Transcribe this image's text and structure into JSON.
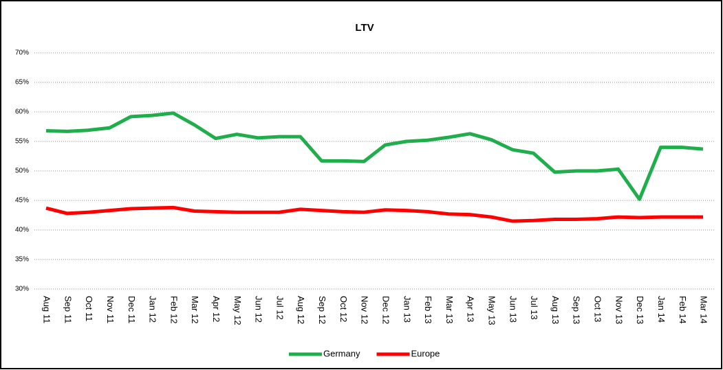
{
  "chart_data": {
    "type": "line",
    "title": "LTV",
    "categories": [
      "Aug 11",
      "Sep 11",
      "Oct 11",
      "Nov 11",
      "Dec 11",
      "Jan 12",
      "Feb 12",
      "Mar 12",
      "Apr 12",
      "May 12",
      "Jun 12",
      "Jul 12",
      "Aug 12",
      "Sep 12",
      "Oct 12",
      "Nov 12",
      "Dec 12",
      "Jan 13",
      "Feb 13",
      "Mar 13",
      "Apr 13",
      "May 13",
      "Jun 13",
      "Jul 13",
      "Aug 13",
      "Sep 13",
      "Oct 13",
      "Nov 13",
      "Dec 13",
      "Jan 14",
      "Feb 14",
      "Mar 14"
    ],
    "series": [
      {
        "name": "Germany",
        "color": "#1fae4b",
        "values": [
          56.8,
          56.7,
          56.9,
          57.3,
          59.2,
          59.4,
          59.8,
          57.8,
          55.5,
          56.2,
          55.6,
          55.8,
          55.8,
          51.7,
          51.7,
          51.6,
          54.4,
          55.0,
          55.2,
          55.7,
          56.3,
          55.3,
          53.6,
          53.0,
          49.8,
          50.0,
          50.0,
          50.3,
          45.2,
          54.0,
          54.0,
          53.7
        ]
      },
      {
        "name": "Europe",
        "color": "#ff0000",
        "values": [
          43.7,
          42.8,
          43.0,
          43.3,
          43.6,
          43.7,
          43.8,
          43.2,
          43.1,
          43.0,
          43.0,
          43.0,
          43.5,
          43.3,
          43.1,
          43.0,
          43.4,
          43.3,
          43.1,
          42.7,
          42.6,
          42.2,
          41.5,
          41.6,
          41.8,
          41.8,
          41.9,
          42.2,
          42.1,
          42.2,
          42.2,
          42.2
        ]
      }
    ],
    "ylim": [
      30,
      70
    ],
    "yticks": [
      {
        "value": 30,
        "label": "30%"
      },
      {
        "value": 35,
        "label": "35%"
      },
      {
        "value": 40,
        "label": "40%"
      },
      {
        "value": 45,
        "label": "45%"
      },
      {
        "value": 50,
        "label": "50%"
      },
      {
        "value": 55,
        "label": "55%"
      },
      {
        "value": 60,
        "label": "60%"
      },
      {
        "value": 65,
        "label": "65%"
      },
      {
        "value": 70,
        "label": "70%"
      }
    ],
    "grid": true,
    "legend": "bottom"
  }
}
